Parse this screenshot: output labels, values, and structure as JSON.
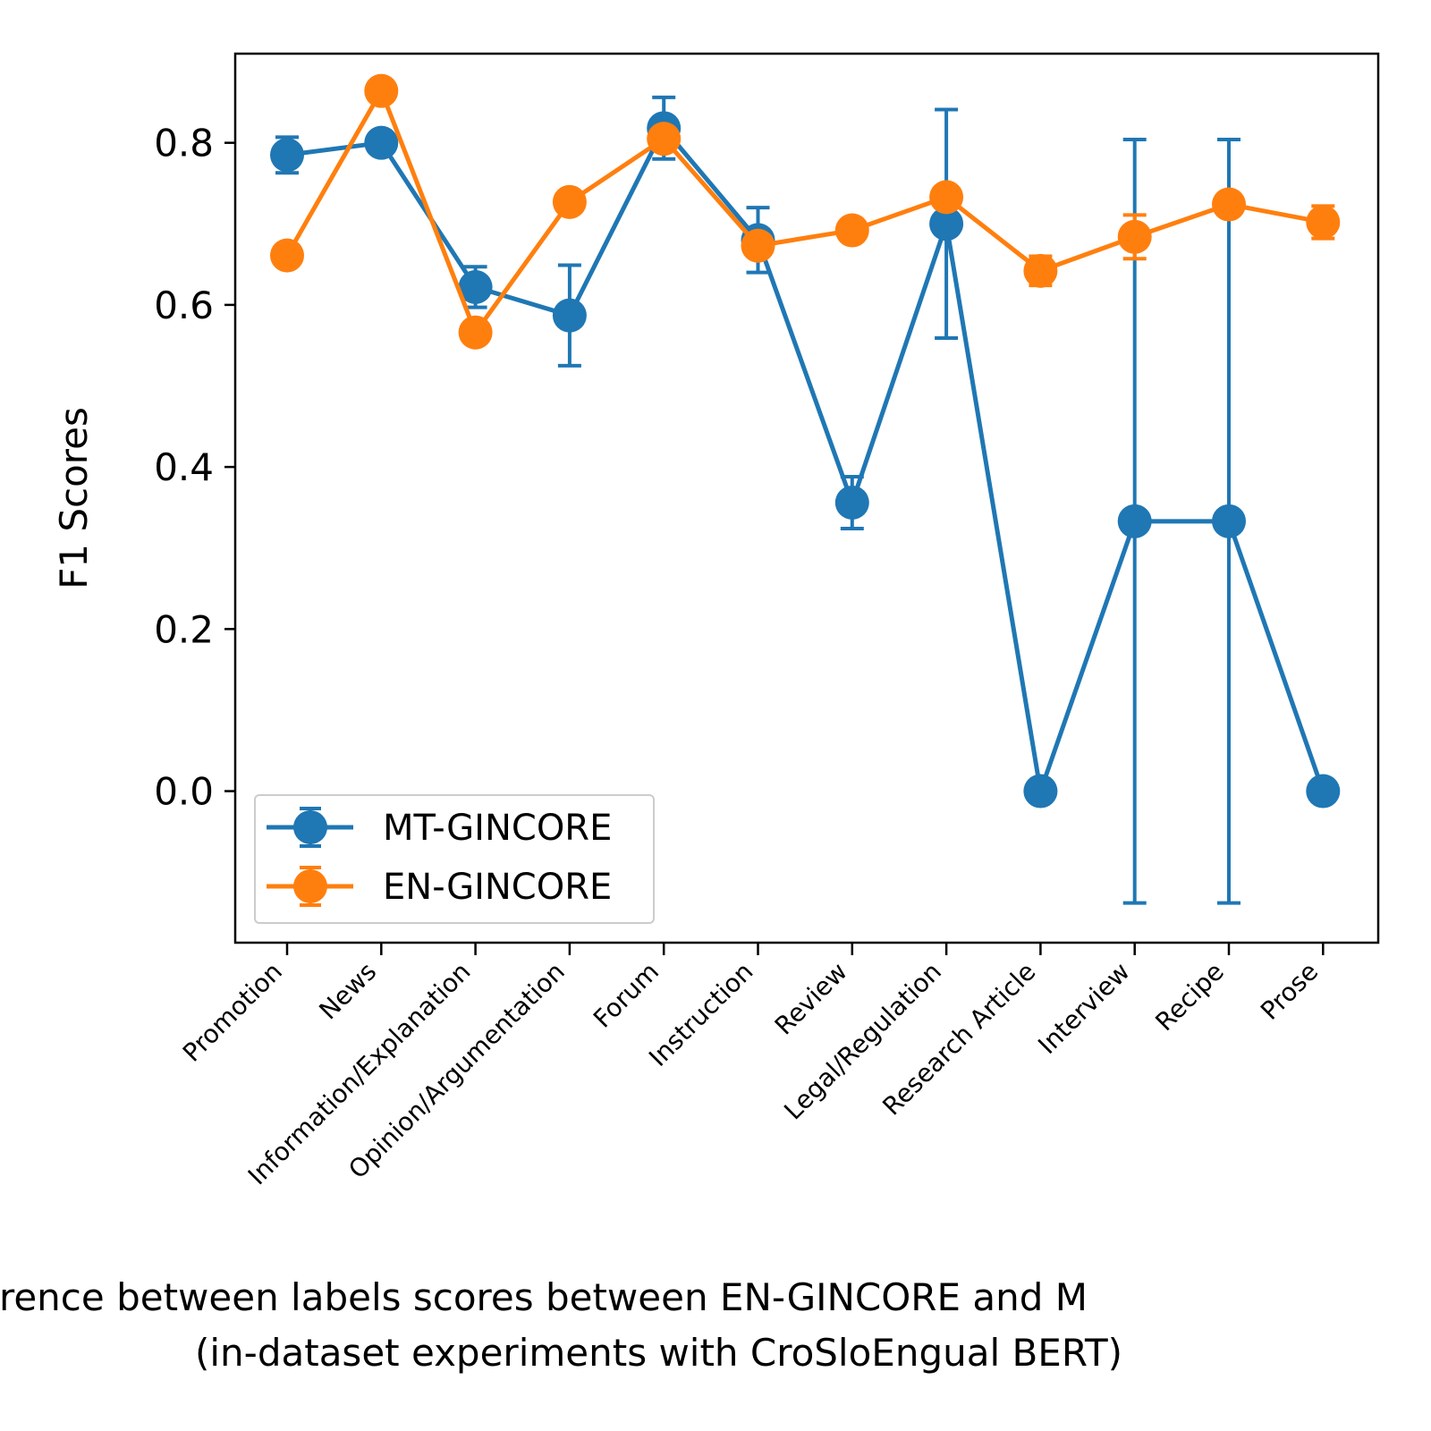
{
  "chart_data": {
    "type": "line",
    "ylabel": "F1 Scores",
    "xlabel_line1": "rence between labels scores between EN-GINCORE and M",
    "xlabel_line2": "(in-dataset experiments with CroSloEngual BERT)",
    "ylim": [
      -0.187,
      0.91
    ],
    "yticks": [
      0.0,
      0.2,
      0.4,
      0.6,
      0.8
    ],
    "ytick_labels": [
      "0.0",
      "0.2",
      "0.4",
      "0.6",
      "0.8"
    ],
    "categories": [
      "Promotion",
      "News",
      "Information/Explanation",
      "Opinion/Argumentation",
      "Forum",
      "Instruction",
      "Review",
      "Legal/Regulation",
      "Research Article",
      "Interview",
      "Recipe",
      "Prose"
    ],
    "legend_position": "lower-left",
    "grid": false,
    "series": [
      {
        "name": "MT-GINCORE",
        "color": "#1f77b4",
        "values": [
          0.785,
          0.8,
          0.622,
          0.587,
          0.818,
          0.68,
          0.356,
          0.7,
          0.0,
          0.333,
          0.333,
          0.0
        ],
        "errors": [
          0.022,
          0.0,
          0.025,
          0.062,
          0.038,
          0.04,
          0.032,
          0.141,
          0.0,
          0.471,
          0.471,
          0.0
        ]
      },
      {
        "name": "EN-GINCORE",
        "color": "#ff7f0e",
        "values": [
          0.661,
          0.864,
          0.566,
          0.727,
          0.805,
          0.673,
          0.692,
          0.733,
          0.642,
          0.684,
          0.724,
          0.702
        ],
        "errors": [
          0.0,
          0.0,
          0.0,
          0.0,
          0.0,
          0.0,
          0.0,
          0.0,
          0.018,
          0.027,
          0.0,
          0.02
        ]
      }
    ]
  }
}
